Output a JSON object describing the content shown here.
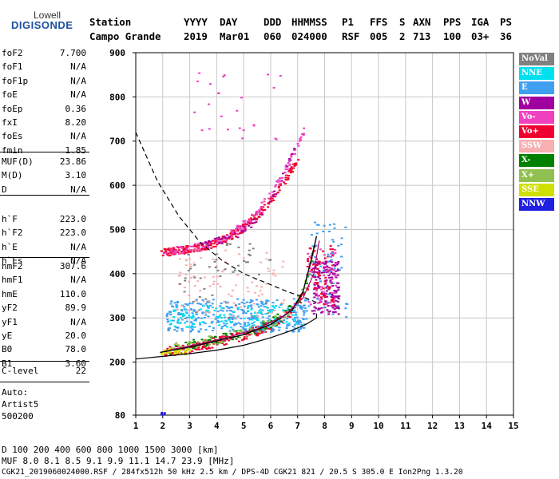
{
  "logo": {
    "top": "Lowell",
    "main": "DIGISONDE"
  },
  "header": {
    "cols": [
      {
        "h": "Station",
        "v": "Campo Grande"
      },
      {
        "h": "YYYY",
        "v": "2019"
      },
      {
        "h": "DAY",
        "v": "Mar01"
      },
      {
        "h": "DDD",
        "v": "060"
      },
      {
        "h": "HHMMSS",
        "v": "024000"
      },
      {
        "h": "P1",
        "v": "RSF"
      },
      {
        "h": "FFS",
        "v": "005"
      },
      {
        "h": "S",
        "v": "2"
      },
      {
        "h": "AXN",
        "v": "713"
      },
      {
        "h": "PPS",
        "v": "100"
      },
      {
        "h": "IGA",
        "v": "03+"
      },
      {
        "h": "PS",
        "v": "36"
      }
    ]
  },
  "params": {
    "group1": [
      {
        "k": "foF2",
        "v": "7.700"
      },
      {
        "k": "foF1",
        "v": "N/A"
      },
      {
        "k": "foF1p",
        "v": "N/A"
      },
      {
        "k": "foE",
        "v": "N/A"
      },
      {
        "k": "foEp",
        "v": "0.36"
      },
      {
        "k": "fxI",
        "v": "8.20"
      },
      {
        "k": "foEs",
        "v": "N/A"
      },
      {
        "k": "fmin",
        "v": "1.85"
      }
    ],
    "group2": [
      {
        "k": "MUF(D)",
        "v": "23.86"
      },
      {
        "k": "M(D)",
        "v": "3.10"
      },
      {
        "k": "D",
        "v": "N/A"
      }
    ],
    "group3": [
      {
        "k": "h`F",
        "v": "223.0"
      },
      {
        "k": "h`F2",
        "v": "223.0"
      },
      {
        "k": "h`E",
        "v": "N/A"
      },
      {
        "k": "h`Es",
        "v": "N/A"
      }
    ],
    "group4": [
      {
        "k": "hmF2",
        "v": "307.6"
      },
      {
        "k": "hmF1",
        "v": "N/A"
      },
      {
        "k": "hmE",
        "v": "110.0"
      },
      {
        "k": "yF2",
        "v": "89.9"
      },
      {
        "k": "yF1",
        "v": "N/A"
      },
      {
        "k": "yE",
        "v": "20.0"
      },
      {
        "k": "B0",
        "v": "78.0"
      },
      {
        "k": "B1",
        "v": "3.60"
      }
    ],
    "group5": [
      {
        "k": "C-level",
        "v": "22"
      }
    ]
  },
  "auto": {
    "l1": "Auto:",
    "l2": "Artist5",
    "l3": "500200"
  },
  "legend": [
    {
      "label": "NoVal",
      "color": "#808080",
      "text": "#ffffff"
    },
    {
      "label": "NNE",
      "color": "#00e0f0",
      "text": "#ffffff"
    },
    {
      "label": "E",
      "color": "#40a0f0",
      "text": "#ffffff"
    },
    {
      "label": "W",
      "color": "#a000a0",
      "text": "#ffffff"
    },
    {
      "label": "Vo-",
      "color": "#f040c0",
      "text": "#ffffff"
    },
    {
      "label": "Vo+",
      "color": "#f00030",
      "text": "#ffffff"
    },
    {
      "label": "SSW",
      "color": "#f8b0b0",
      "text": "#ffffff"
    },
    {
      "label": "X-",
      "color": "#008000",
      "text": "#ffffff"
    },
    {
      "label": "X+",
      "color": "#90c050",
      "text": "#ffffff"
    },
    {
      "label": "SSE",
      "color": "#d0e000",
      "text": "#ffffff"
    },
    {
      "label": "NNW",
      "color": "#2020e0",
      "text": "#ffffff"
    }
  ],
  "footer": {
    "row1": "D     100  200  400  600  800 1000 1500 3000 [km]",
    "row2": "MUF   8.0  8.1  8.5  9.1  9.9 11.1 14.7 23.9 [MHz]",
    "row3": "CGK21_2019060024000.RSF / 284fx512h 50 kHz 2.5 km / DPS-4D CGK21 821 / 20.5 S 305.0 E Ion2Png 1.3.20"
  },
  "chart_data": {
    "type": "scatter",
    "xlim": [
      1,
      15
    ],
    "ylim": [
      80,
      900
    ],
    "x_ticks": [
      "1",
      "2",
      "3",
      "4",
      "5",
      "6",
      "7",
      "8",
      "9",
      "10",
      "11",
      "12",
      "13",
      "14",
      "15"
    ],
    "y_ticks": [
      "80",
      "200",
      "300",
      "400",
      "500",
      "600",
      "700",
      "800",
      "900"
    ],
    "grid": true,
    "curves": {
      "trace_o": {
        "x": [
          1.9,
          3,
          4,
          5,
          6,
          6.8,
          7.2,
          7.5,
          7.7
        ],
        "y": [
          222,
          234,
          248,
          262,
          285,
          318,
          360,
          430,
          485
        ]
      },
      "trace_x": {
        "x": [
          2.3,
          3.5,
          4.5,
          5.5,
          6.5,
          7.2,
          7.6,
          7.8
        ],
        "y": [
          228,
          243,
          258,
          275,
          305,
          345,
          400,
          475
        ]
      },
      "profile": {
        "x": [
          1,
          2,
          3,
          4,
          5,
          6,
          6.8,
          7.3,
          7.7,
          7.7
        ],
        "y": [
          207,
          213,
          219,
          227,
          238,
          255,
          272,
          285,
          300,
          310
        ]
      },
      "dashed": {
        "x": [
          1,
          1.8,
          2.6,
          3.4,
          4.2,
          5,
          5.8,
          6.6,
          7.3,
          7.7
        ],
        "y": [
          720,
          610,
          530,
          470,
          430,
          400,
          380,
          360,
          345,
          335
        ]
      }
    },
    "clusters": [
      {
        "label": "Vo+",
        "x": [
          2.0,
          7.2
        ],
        "y": [
          218,
          300
        ],
        "n": 220,
        "trend": true
      },
      {
        "label": "E",
        "x": [
          2.1,
          7.4
        ],
        "y": [
          270,
          345
        ],
        "n": 380
      },
      {
        "label": "NNE",
        "x": [
          2.2,
          6.9
        ],
        "y": [
          280,
          330
        ],
        "n": 120
      },
      {
        "label": "X-",
        "x": [
          2.2,
          7.6
        ],
        "y": [
          215,
          330
        ],
        "n": 90,
        "trend": true
      },
      {
        "label": "X+",
        "x": [
          2.2,
          7.6
        ],
        "y": [
          220,
          335
        ],
        "n": 80,
        "trend": true
      },
      {
        "label": "SSE",
        "x": [
          1.9,
          3.0
        ],
        "y": [
          218,
          232
        ],
        "n": 40
      },
      {
        "label": "SSW",
        "x": [
          2.5,
          6.5
        ],
        "y": [
          300,
          455
        ],
        "n": 90
      },
      {
        "label": "NoVal",
        "x": [
          2.6,
          6.0
        ],
        "y": [
          300,
          470
        ],
        "n": 50
      },
      {
        "label": "W",
        "x": [
          7.5,
          8.5
        ],
        "y": [
          310,
          430
        ],
        "n": 160
      },
      {
        "label": "Vo-",
        "x": [
          7.3,
          8.4
        ],
        "y": [
          320,
          460
        ],
        "n": 70
      },
      {
        "label": "Vo+",
        "x": [
          7.3,
          8.3
        ],
        "y": [
          330,
          470
        ],
        "n": 60
      },
      {
        "label": "E",
        "x": [
          7.3,
          8.8
        ],
        "y": [
          300,
          520
        ],
        "n": 50
      },
      {
        "label": "Vo+",
        "x": [
          1.9,
          7.0
        ],
        "y": [
          448,
          640
        ],
        "n": 260,
        "upper": true
      },
      {
        "label": "Vo-",
        "x": [
          2.0,
          7.2
        ],
        "y": [
          450,
          700
        ],
        "n": 140,
        "upper": true
      },
      {
        "label": "W",
        "x": [
          3.5,
          7.0
        ],
        "y": [
          470,
          690
        ],
        "n": 40,
        "upper": true
      },
      {
        "label": "Vo-",
        "x": [
          3.0,
          6.4
        ],
        "y": [
          700,
          860
        ],
        "n": 25
      },
      {
        "label": "NNW",
        "x": [
          1.85,
          2.05
        ],
        "y": [
          80,
          90
        ],
        "n": 6
      }
    ]
  }
}
